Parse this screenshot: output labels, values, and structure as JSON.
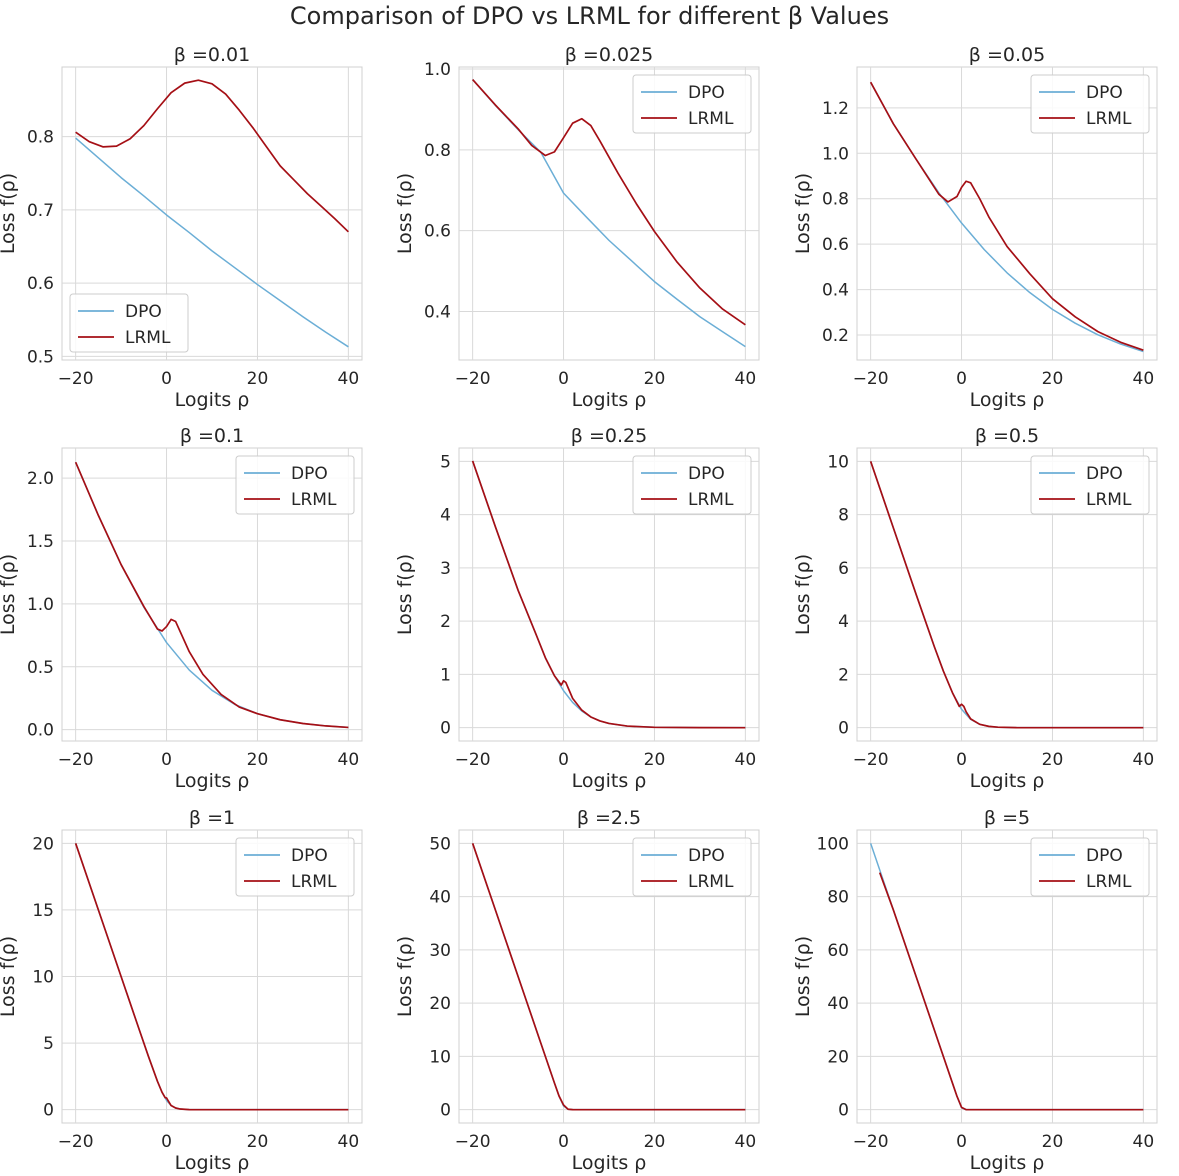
{
  "figure": {
    "title": "Comparison of DPO vs LRML for different β Values"
  },
  "colors": {
    "dpo": "#6baed6",
    "lrml": "#a50f15",
    "grid": "#d9d9d9",
    "spine": "#d0d0d0",
    "text": "#262626"
  },
  "chart_data": [
    {
      "type": "line",
      "title": "β =0.01",
      "beta": 0.01,
      "xlabel": "Logits ρ",
      "ylabel": "Loss f(ρ)",
      "xlim": [
        -23,
        43
      ],
      "ylim": [
        0.495,
        0.895
      ],
      "xticks": [
        -20,
        0,
        20,
        40
      ],
      "xtick_labels": [
        "−20",
        "0",
        "20",
        "40"
      ],
      "yticks": [
        0.5,
        0.6,
        0.7,
        0.8
      ],
      "ytick_labels": [
        "0.5",
        "0.6",
        "0.7",
        "0.8"
      ],
      "legend": "lower-left",
      "series": [
        {
          "name": "DPO",
          "x": [
            -20,
            -15,
            -10,
            -5,
            0,
            5,
            10,
            15,
            20,
            25,
            30,
            35,
            40
          ],
          "y": [
            0.798,
            0.771,
            0.744,
            0.719,
            0.693,
            0.669,
            0.644,
            0.621,
            0.598,
            0.576,
            0.554,
            0.533,
            0.513
          ]
        },
        {
          "name": "LRML",
          "x": [
            -20,
            -17,
            -14,
            -11,
            -8,
            -5,
            -2,
            1,
            4,
            7,
            10,
            13,
            16,
            19,
            22,
            25,
            28,
            31,
            34,
            37,
            40
          ],
          "y": [
            0.806,
            0.793,
            0.786,
            0.787,
            0.797,
            0.815,
            0.838,
            0.86,
            0.873,
            0.877,
            0.872,
            0.858,
            0.836,
            0.812,
            0.786,
            0.76,
            0.741,
            0.722,
            0.705,
            0.688,
            0.67
          ]
        }
      ]
    },
    {
      "type": "line",
      "title": "β =0.025",
      "beta": 0.025,
      "xlabel": "Logits ρ",
      "ylabel": "Loss f(ρ)",
      "xlim": [
        -23,
        43
      ],
      "ylim": [
        0.28,
        1.005
      ],
      "xticks": [
        -20,
        0,
        20,
        40
      ],
      "xtick_labels": [
        "−20",
        "0",
        "20",
        "40"
      ],
      "yticks": [
        0.4,
        0.6,
        0.8,
        1.0
      ],
      "ytick_labels": [
        "0.4",
        "0.6",
        "0.8",
        "1.0"
      ],
      "legend": "upper-right",
      "series": [
        {
          "name": "DPO",
          "x": [
            -20,
            -15,
            -10,
            -5,
            0,
            5,
            10,
            15,
            20,
            25,
            30,
            35,
            40
          ],
          "y": [
            0.974,
            0.91,
            0.85,
            0.794,
            0.693,
            0.634,
            0.576,
            0.525,
            0.474,
            0.43,
            0.387,
            0.35,
            0.313
          ]
        },
        {
          "name": "LRML",
          "x": [
            -20,
            -15,
            -10,
            -7,
            -4,
            -2,
            0,
            2,
            4,
            6,
            8,
            12,
            16,
            20,
            25,
            30,
            35,
            40
          ],
          "y": [
            0.974,
            0.911,
            0.852,
            0.811,
            0.786,
            0.795,
            0.83,
            0.866,
            0.877,
            0.86,
            0.822,
            0.742,
            0.667,
            0.598,
            0.522,
            0.458,
            0.406,
            0.367
          ]
        }
      ]
    },
    {
      "type": "line",
      "title": "β =0.05",
      "beta": 0.05,
      "xlabel": "Logits ρ",
      "ylabel": "Loss f(ρ)",
      "xlim": [
        -23,
        43
      ],
      "ylim": [
        0.09,
        1.38
      ],
      "xticks": [
        -20,
        0,
        20,
        40
      ],
      "xtick_labels": [
        "−20",
        "0",
        "20",
        "40"
      ],
      "yticks": [
        0.2,
        0.4,
        0.6,
        0.8,
        1.0,
        1.2
      ],
      "ytick_labels": [
        "0.2",
        "0.4",
        "0.6",
        "0.8",
        "1.0",
        "1.2"
      ],
      "legend": "upper-right",
      "series": [
        {
          "name": "DPO",
          "x": [
            -20,
            -15,
            -10,
            -5,
            0,
            5,
            10,
            15,
            20,
            25,
            30,
            35,
            40
          ],
          "y": [
            1.313,
            1.13,
            0.974,
            0.826,
            0.693,
            0.576,
            0.474,
            0.387,
            0.313,
            0.252,
            0.201,
            0.16,
            0.127
          ]
        },
        {
          "name": "LRML",
          "x": [
            -20,
            -15,
            -10,
            -5,
            -3,
            -1,
            0,
            1,
            2,
            4,
            6,
            10,
            15,
            20,
            25,
            30,
            35,
            40
          ],
          "y": [
            1.313,
            1.13,
            0.974,
            0.82,
            0.786,
            0.81,
            0.85,
            0.877,
            0.87,
            0.8,
            0.72,
            0.59,
            0.47,
            0.36,
            0.28,
            0.215,
            0.168,
            0.133
          ]
        }
      ]
    },
    {
      "type": "line",
      "title": "β =0.1",
      "beta": 0.1,
      "xlabel": "Logits ρ",
      "ylabel": "Loss f(ρ)",
      "xlim": [
        -23,
        43
      ],
      "ylim": [
        -0.09,
        2.24
      ],
      "xticks": [
        -20,
        0,
        20,
        40
      ],
      "xtick_labels": [
        "−20",
        "0",
        "20",
        "40"
      ],
      "yticks": [
        0.0,
        0.5,
        1.0,
        1.5,
        2.0
      ],
      "ytick_labels": [
        "0.0",
        "0.5",
        "1.0",
        "1.5",
        "2.0"
      ],
      "legend": "upper-right",
      "series": [
        {
          "name": "DPO",
          "x": [
            -20,
            -15,
            -10,
            -5,
            0,
            5,
            10,
            15,
            20,
            25,
            30,
            35,
            40
          ],
          "y": [
            2.127,
            1.704,
            1.313,
            0.974,
            0.693,
            0.474,
            0.313,
            0.201,
            0.127,
            0.079,
            0.049,
            0.03,
            0.018
          ]
        },
        {
          "name": "LRML",
          "x": [
            -20,
            -15,
            -10,
            -5,
            -2,
            -1,
            0,
            1,
            2,
            3,
            5,
            8,
            12,
            16,
            20,
            25,
            30,
            35,
            40
          ],
          "y": [
            2.127,
            1.704,
            1.313,
            0.98,
            0.8,
            0.785,
            0.82,
            0.877,
            0.86,
            0.78,
            0.62,
            0.44,
            0.28,
            0.18,
            0.127,
            0.079,
            0.049,
            0.03,
            0.018
          ]
        }
      ]
    },
    {
      "type": "line",
      "title": "β =0.25",
      "beta": 0.25,
      "xlabel": "Logits ρ",
      "ylabel": "Loss f(ρ)",
      "xlim": [
        -23,
        43
      ],
      "ylim": [
        -0.25,
        5.25
      ],
      "xticks": [
        -20,
        0,
        20,
        40
      ],
      "xtick_labels": [
        "−20",
        "0",
        "20",
        "40"
      ],
      "yticks": [
        0,
        1,
        2,
        3,
        4,
        5
      ],
      "ytick_labels": [
        "0",
        "1",
        "2",
        "3",
        "4",
        "5"
      ],
      "legend": "upper-right",
      "series": [
        {
          "name": "DPO",
          "x": [
            -20,
            -15,
            -10,
            -6,
            -4,
            -2,
            0,
            2,
            4,
            6,
            8,
            10,
            14,
            20,
            30,
            40
          ],
          "y": [
            5.007,
            3.773,
            2.579,
            1.74,
            1.313,
            0.974,
            0.693,
            0.474,
            0.313,
            0.201,
            0.127,
            0.079,
            0.03,
            0.007,
            0.001,
            0.0
          ]
        },
        {
          "name": "LRML",
          "x": [
            -20,
            -15,
            -10,
            -6,
            -4,
            -2,
            -0.5,
            0,
            0.5,
            1,
            2,
            4,
            6,
            8,
            10,
            14,
            20,
            30,
            40
          ],
          "y": [
            5.007,
            3.773,
            2.579,
            1.74,
            1.313,
            0.974,
            0.8,
            0.88,
            0.85,
            0.75,
            0.55,
            0.33,
            0.201,
            0.127,
            0.079,
            0.03,
            0.007,
            0.001,
            0.0
          ]
        }
      ]
    },
    {
      "type": "line",
      "title": "β =0.5",
      "beta": 0.5,
      "xlabel": "Logits ρ",
      "ylabel": "Loss f(ρ)",
      "xlim": [
        -23,
        43
      ],
      "ylim": [
        -0.5,
        10.5
      ],
      "xticks": [
        -20,
        0,
        20,
        40
      ],
      "xtick_labels": [
        "−20",
        "0",
        "20",
        "40"
      ],
      "yticks": [
        0,
        2,
        4,
        6,
        8,
        10
      ],
      "ytick_labels": [
        "0",
        "2",
        "4",
        "6",
        "8",
        "10"
      ],
      "legend": "upper-right",
      "series": [
        {
          "name": "DPO",
          "x": [
            -20,
            -15,
            -10,
            -6,
            -4,
            -2,
            0,
            2,
            4,
            6,
            8,
            12,
            20,
            30,
            40
          ],
          "y": [
            10.0,
            7.5,
            5.007,
            3.049,
            2.127,
            1.313,
            0.693,
            0.313,
            0.127,
            0.049,
            0.018,
            0.002,
            0.0,
            0.0,
            0.0
          ]
        },
        {
          "name": "LRML",
          "x": [
            -20,
            -15,
            -10,
            -6,
            -4,
            -2,
            -0.5,
            0,
            0.5,
            1,
            2,
            4,
            6,
            8,
            12,
            20,
            30,
            40
          ],
          "y": [
            10.0,
            7.5,
            5.007,
            3.049,
            2.127,
            1.313,
            0.8,
            0.88,
            0.8,
            0.6,
            0.33,
            0.127,
            0.049,
            0.018,
            0.002,
            0.0,
            0.0,
            0.0
          ]
        }
      ]
    },
    {
      "type": "line",
      "title": "β =1",
      "beta": 1,
      "xlabel": "Logits ρ",
      "ylabel": "Loss f(ρ)",
      "xlim": [
        -23,
        43
      ],
      "ylim": [
        -1.0,
        21.0
      ],
      "xticks": [
        -20,
        0,
        20,
        40
      ],
      "xtick_labels": [
        "−20",
        "0",
        "20",
        "40"
      ],
      "yticks": [
        0,
        5,
        10,
        15,
        20
      ],
      "ytick_labels": [
        "0",
        "5",
        "10",
        "15",
        "20"
      ],
      "legend": "upper-right",
      "series": [
        {
          "name": "DPO",
          "x": [
            -20,
            -15,
            -10,
            -6,
            -4,
            -2,
            -1,
            0,
            1,
            2,
            3,
            5,
            10,
            20,
            30,
            40
          ],
          "y": [
            20.0,
            15.0,
            10.0,
            6.0,
            4.018,
            2.127,
            1.313,
            0.693,
            0.313,
            0.127,
            0.049,
            0.007,
            0.0,
            0.0,
            0.0,
            0.0
          ]
        },
        {
          "name": "LRML",
          "x": [
            -20,
            -15,
            -10,
            -6,
            -4,
            -2,
            -1,
            -0.3,
            0,
            0.3,
            1,
            2,
            3,
            5,
            10,
            20,
            30,
            40
          ],
          "y": [
            20.0,
            15.0,
            10.0,
            6.0,
            4.018,
            2.127,
            1.313,
            0.9,
            0.88,
            0.7,
            0.313,
            0.127,
            0.049,
            0.007,
            0.0,
            0.0,
            0.0,
            0.0
          ]
        }
      ]
    },
    {
      "type": "line",
      "title": "β =2.5",
      "beta": 2.5,
      "xlabel": "Logits ρ",
      "ylabel": "Loss f(ρ)",
      "xlim": [
        -23,
        43
      ],
      "ylim": [
        -2.5,
        52.5
      ],
      "xticks": [
        -20,
        0,
        20,
        40
      ],
      "xtick_labels": [
        "−20",
        "0",
        "20",
        "40"
      ],
      "yticks": [
        0,
        10,
        20,
        30,
        40,
        50
      ],
      "ytick_labels": [
        "0",
        "10",
        "20",
        "30",
        "40",
        "50"
      ],
      "legend": "upper-right",
      "series": [
        {
          "name": "DPO",
          "x": [
            -20,
            -15,
            -10,
            -5,
            -2,
            -1,
            0,
            1,
            2,
            5,
            10,
            20,
            30,
            40
          ],
          "y": [
            50.0,
            37.5,
            25.0,
            12.5,
            5.007,
            2.579,
            0.693,
            0.079,
            0.007,
            0.0,
            0.0,
            0.0,
            0.0,
            0.0
          ]
        },
        {
          "name": "LRML",
          "x": [
            -20,
            -15,
            -10,
            -5,
            -2,
            -1,
            0,
            1,
            2,
            5,
            10,
            20,
            30,
            40
          ],
          "y": [
            50.0,
            37.5,
            25.0,
            12.5,
            5.007,
            2.579,
            0.88,
            0.079,
            0.007,
            0.0,
            0.0,
            0.0,
            0.0,
            0.0
          ]
        }
      ]
    },
    {
      "type": "line",
      "title": "β =5",
      "beta": 5,
      "xlabel": "Logits ρ",
      "ylabel": "Loss f(ρ)",
      "xlim": [
        -23,
        43
      ],
      "ylim": [
        -5.0,
        105.0
      ],
      "xticks": [
        -20,
        0,
        20,
        40
      ],
      "xtick_labels": [
        "−20",
        "0",
        "20",
        "40"
      ],
      "yticks": [
        0,
        20,
        40,
        60,
        80,
        100
      ],
      "ytick_labels": [
        "0",
        "20",
        "40",
        "60",
        "80",
        "100"
      ],
      "legend": "upper-right",
      "series": [
        {
          "name": "DPO",
          "x": [
            -20,
            -15,
            -10,
            -5,
            -2,
            -1,
            0,
            1,
            2,
            5,
            10,
            20,
            30,
            40
          ],
          "y": [
            100.0,
            75.0,
            50.0,
            25.0,
            10.0,
            5.0,
            0.693,
            0.007,
            0.0,
            0.0,
            0.0,
            0.0,
            0.0,
            0.0
          ]
        },
        {
          "name": "LRML",
          "x": [
            -18,
            -15,
            -10,
            -5,
            -2,
            -1,
            0,
            1,
            2,
            5,
            10,
            20,
            30,
            40
          ],
          "y": [
            89.0,
            75.0,
            50.0,
            25.0,
            10.0,
            5.0,
            0.88,
            0.007,
            0.0,
            0.0,
            0.0,
            0.0,
            0.0,
            0.0
          ]
        }
      ]
    }
  ]
}
